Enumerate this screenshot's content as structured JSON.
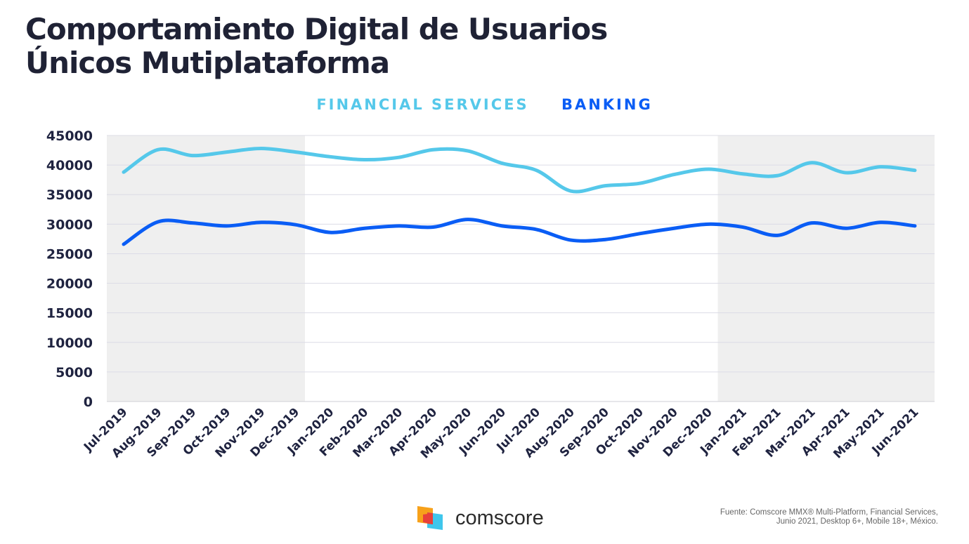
{
  "title_line1": "Comportamiento Digital de Usuarios",
  "title_line2": "Únicos Mutiplataforma",
  "brand": {
    "name": "comscore",
    "colors": {
      "orange": "#f7a11a",
      "red": "#e8403a",
      "blue": "#3fc6ec"
    }
  },
  "source_line1": "Fuente: Comscore MMX® Multi-Platform, Financial Services,",
  "source_line2": "Junio 2021, Desktop 6+, Mobile 18+, México.",
  "chart_data": {
    "type": "line",
    "title": "",
    "xlabel": "",
    "ylabel": "",
    "ylim": [
      0,
      45000
    ],
    "yticks": [
      "0",
      "5000",
      "10000",
      "15000",
      "20000",
      "25000",
      "30000",
      "35000",
      "40000",
      "45000"
    ],
    "grid": true,
    "legend_position": "top-center",
    "categories": [
      "Jul-2019",
      "Aug-2019",
      "Sep-2019",
      "Oct-2019",
      "Nov-2019",
      "Dec-2019",
      "Jan-2020",
      "Feb-2020",
      "Mar-2020",
      "Apr-2020",
      "May-2020",
      "Jun-2020",
      "Jul-2020",
      "Aug-2020",
      "Sep-2020",
      "Oct-2020",
      "Nov-2020",
      "Dec-2020",
      "Jan-2021",
      "Feb-2021",
      "Mar-2021",
      "Apr-2021",
      "May-2021",
      "Jun-2021"
    ],
    "shaded_periods": [
      [
        -0.5,
        5.27
      ],
      [
        17.27,
        23.6
      ]
    ],
    "series": [
      {
        "name": "FINANCIAL SERVICES",
        "color": "#55c8ea",
        "values": [
          38800,
          42600,
          41600,
          42200,
          42800,
          42200,
          41400,
          40900,
          41300,
          42600,
          42400,
          40300,
          39100,
          35600,
          36500,
          36900,
          38400,
          39300,
          38500,
          38200,
          40400,
          38700,
          39700,
          39100
        ]
      },
      {
        "name": "BANKING",
        "color": "#0a5df5",
        "values": [
          26600,
          30400,
          30200,
          29700,
          30300,
          29900,
          28600,
          29300,
          29700,
          29500,
          30800,
          29700,
          29100,
          27300,
          27400,
          28400,
          29300,
          30000,
          29500,
          28100,
          30200,
          29300,
          30300,
          29700
        ]
      }
    ]
  }
}
